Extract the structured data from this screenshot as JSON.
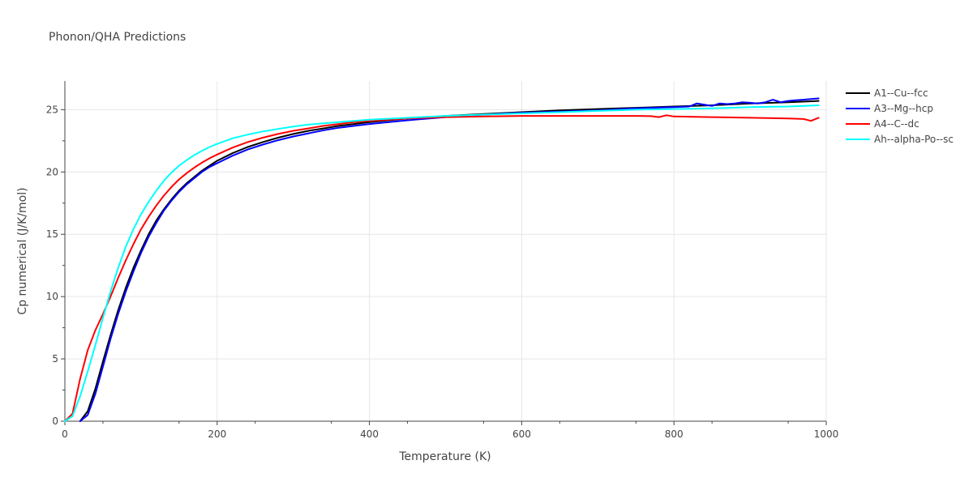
{
  "chart_data": {
    "type": "line",
    "title": "Phonon/QHA Predictions",
    "xlabel": "Temperature (K)",
    "ylabel": "Cp numerical (J/K/mol)",
    "xlim": [
      0,
      1000
    ],
    "ylim": [
      0,
      27.3
    ],
    "xticks": [
      0,
      200,
      400,
      600,
      800,
      1000
    ],
    "xtick_labels": [
      "0",
      "200",
      "400",
      "600",
      "800",
      "1000"
    ],
    "yticks": [
      0,
      5,
      10,
      15,
      20,
      25
    ],
    "ytick_labels": [
      "0",
      "5",
      "10",
      "15",
      "20",
      "25"
    ],
    "grid": true,
    "legend_position": "right",
    "series": [
      {
        "name": "A1--Cu--fcc",
        "color": "#000000",
        "x": [
          20,
          30,
          40,
          50,
          60,
          70,
          80,
          90,
          100,
          110,
          120,
          130,
          140,
          150,
          160,
          170,
          180,
          190,
          200,
          220,
          240,
          260,
          280,
          300,
          320,
          340,
          360,
          380,
          400,
          450,
          500,
          550,
          600,
          650,
          700,
          750,
          800,
          850,
          900,
          950,
          990
        ],
        "y": [
          0.0,
          0.8,
          2.6,
          4.8,
          6.9,
          8.9,
          10.7,
          12.3,
          13.7,
          15.0,
          16.1,
          17.0,
          17.8,
          18.5,
          19.1,
          19.6,
          20.1,
          20.5,
          20.9,
          21.5,
          22.0,
          22.4,
          22.75,
          23.05,
          23.3,
          23.5,
          23.7,
          23.85,
          24.0,
          24.3,
          24.5,
          24.65,
          24.8,
          24.95,
          25.05,
          25.15,
          25.25,
          25.35,
          25.5,
          25.6,
          25.7
        ]
      },
      {
        "name": "A3--Mg--hcp",
        "color": "#0000ff",
        "x": [
          20,
          30,
          40,
          50,
          60,
          70,
          80,
          90,
          100,
          110,
          120,
          130,
          140,
          150,
          160,
          170,
          180,
          190,
          200,
          220,
          240,
          260,
          280,
          300,
          320,
          340,
          360,
          380,
          400,
          450,
          500,
          550,
          600,
          650,
          700,
          750,
          800,
          820,
          830,
          840,
          850,
          860,
          870,
          880,
          890,
          900,
          910,
          920,
          930,
          940,
          950,
          960,
          970,
          980,
          990
        ],
        "y": [
          0.0,
          0.5,
          2.2,
          4.4,
          6.6,
          8.6,
          10.4,
          12.0,
          13.5,
          14.8,
          15.9,
          16.9,
          17.7,
          18.4,
          19.0,
          19.5,
          20.0,
          20.4,
          20.7,
          21.3,
          21.8,
          22.2,
          22.55,
          22.85,
          23.1,
          23.35,
          23.55,
          23.7,
          23.85,
          24.15,
          24.4,
          24.6,
          24.75,
          24.85,
          24.95,
          25.1,
          25.2,
          25.25,
          25.5,
          25.4,
          25.3,
          25.5,
          25.45,
          25.5,
          25.6,
          25.55,
          25.5,
          25.6,
          25.8,
          25.6,
          25.7,
          25.75,
          25.8,
          25.85,
          25.9
        ]
      },
      {
        "name": "A4--C--dc",
        "color": "#ff0000",
        "x": [
          0,
          10,
          20,
          30,
          40,
          50,
          60,
          70,
          80,
          90,
          100,
          110,
          120,
          130,
          140,
          150,
          160,
          170,
          180,
          190,
          200,
          220,
          240,
          260,
          280,
          300,
          320,
          340,
          360,
          380,
          400,
          450,
          500,
          550,
          600,
          650,
          700,
          750,
          770,
          780,
          790,
          800,
          850,
          900,
          950,
          970,
          980,
          990
        ],
        "y": [
          0.0,
          0.6,
          3.4,
          5.7,
          7.3,
          8.6,
          10.0,
          11.5,
          12.9,
          14.2,
          15.4,
          16.4,
          17.3,
          18.1,
          18.8,
          19.4,
          19.9,
          20.35,
          20.75,
          21.1,
          21.4,
          21.95,
          22.4,
          22.75,
          23.05,
          23.3,
          23.5,
          23.7,
          23.85,
          24.0,
          24.1,
          24.3,
          24.4,
          24.45,
          24.5,
          24.5,
          24.5,
          24.5,
          24.48,
          24.4,
          24.55,
          24.45,
          24.4,
          24.35,
          24.3,
          24.25,
          24.1,
          24.35
        ]
      },
      {
        "name": "Ah--alpha-Po--sc",
        "color": "#00ffff",
        "x": [
          0,
          10,
          20,
          30,
          40,
          50,
          60,
          70,
          80,
          90,
          100,
          110,
          120,
          130,
          140,
          150,
          160,
          170,
          180,
          190,
          200,
          220,
          240,
          260,
          280,
          300,
          320,
          340,
          360,
          380,
          400,
          450,
          500,
          550,
          600,
          650,
          700,
          750,
          800,
          850,
          900,
          950,
          990
        ],
        "y": [
          0.0,
          0.4,
          2.0,
          4.0,
          6.1,
          8.3,
          10.4,
          12.3,
          14.0,
          15.4,
          16.6,
          17.6,
          18.5,
          19.3,
          19.95,
          20.5,
          20.95,
          21.35,
          21.7,
          22.0,
          22.25,
          22.7,
          23.0,
          23.25,
          23.45,
          23.65,
          23.8,
          23.9,
          24.0,
          24.1,
          24.2,
          24.35,
          24.5,
          24.6,
          24.7,
          24.8,
          24.9,
          25.0,
          25.05,
          25.1,
          25.2,
          25.25,
          25.35
        ]
      }
    ]
  }
}
